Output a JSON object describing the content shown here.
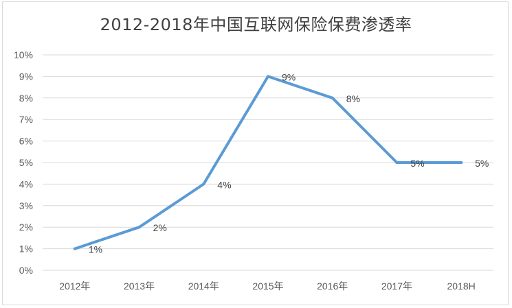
{
  "chart_data": {
    "type": "line",
    "title": "2012-2018年中国互联网保险保费渗透率",
    "categories": [
      "2012年",
      "2013年",
      "2014年",
      "2015年",
      "2016年",
      "2017年",
      "2018H"
    ],
    "series": [
      {
        "values": [
          1,
          2,
          4,
          9,
          8,
          5,
          5
        ],
        "color": "#5b9bd5"
      }
    ],
    "data_labels": [
      "1%",
      "2%",
      "4%",
      "9%",
      "8%",
      "5%",
      "5%"
    ],
    "ylim": [
      0,
      10
    ],
    "y_ticks": [
      "0%",
      "1%",
      "2%",
      "3%",
      "4%",
      "5%",
      "6%",
      "7%",
      "8%",
      "9%",
      "10%"
    ],
    "xlabel": "",
    "ylabel": "",
    "grid": true,
    "legend": "none",
    "gridline_color": "#d9d9d9"
  }
}
